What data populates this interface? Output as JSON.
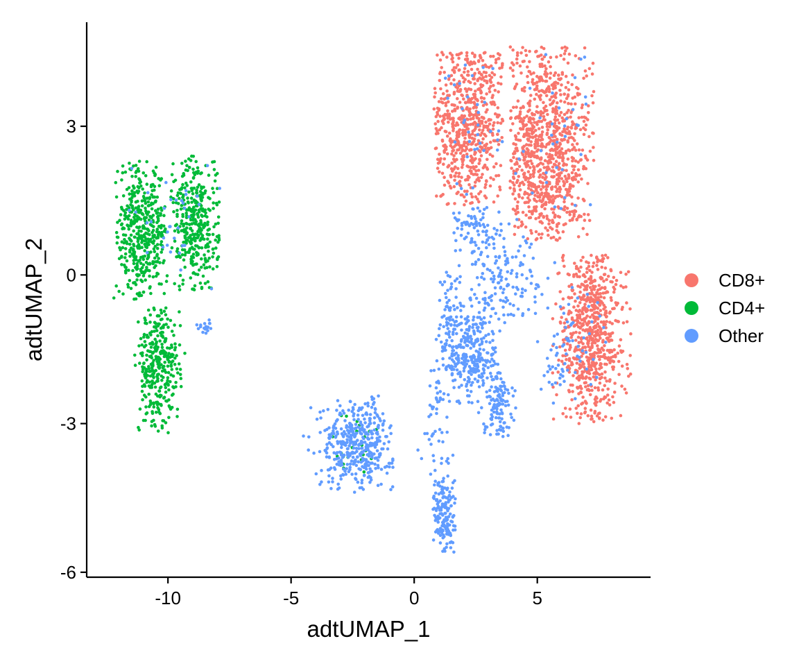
{
  "chart_data": {
    "type": "scatter",
    "xlabel": "adtUMAP_1",
    "ylabel": "adtUMAP_2",
    "xlim": [
      -13.3,
      9.6
    ],
    "ylim": [
      -6.1,
      5.1
    ],
    "xticks": [
      -10,
      -5,
      0,
      5
    ],
    "xtick_labels": [
      "-10",
      "-5",
      "0",
      "5"
    ],
    "yticks": [
      3,
      0,
      -3,
      -6
    ],
    "ytick_labels": [
      "3",
      "0",
      "-3",
      "-6"
    ],
    "grid": false,
    "legend_position": "right",
    "series": [
      {
        "name": "CD8+",
        "color": "#F8766D",
        "clusters": [
          {
            "cx": 2.2,
            "cy": 3.0,
            "sx": 0.85,
            "sy": 1.0,
            "n": 650,
            "xr": [
              0.8,
              3.6
            ],
            "yr": [
              1.4,
              4.5
            ]
          },
          {
            "cx": 5.2,
            "cy": 2.5,
            "sx": 1.05,
            "sy": 1.15,
            "n": 950,
            "xr": [
              3.9,
              7.3
            ],
            "yr": [
              0.7,
              4.6
            ]
          },
          {
            "cx": 7.2,
            "cy": -1.2,
            "sx": 0.75,
            "sy": 1.05,
            "n": 700,
            "xr": [
              5.6,
              8.8
            ],
            "yr": [
              -3.0,
              0.4
            ]
          }
        ]
      },
      {
        "name": "CD4+",
        "color": "#00BA38",
        "clusters": [
          {
            "cx": -11.1,
            "cy": 0.8,
            "sx": 0.55,
            "sy": 0.7,
            "n": 450,
            "xr": [
              -12.2,
              -9.9
            ],
            "yr": [
              -0.5,
              2.3
            ]
          },
          {
            "cx": -8.9,
            "cy": 1.0,
            "sx": 0.5,
            "sy": 0.75,
            "n": 380,
            "xr": [
              -9.9,
              -7.9
            ],
            "yr": [
              -0.3,
              2.4
            ]
          },
          {
            "cx": -10.4,
            "cy": -1.9,
            "sx": 0.45,
            "sy": 0.65,
            "n": 330,
            "xr": [
              -11.4,
              -9.3
            ],
            "yr": [
              -3.2,
              -0.6
            ]
          },
          {
            "cx": -2.4,
            "cy": -3.4,
            "sx": 0.6,
            "sy": 0.4,
            "n": 22,
            "xr": [
              -3.4,
              -1.4
            ],
            "yr": [
              -4.3,
              -2.5
            ]
          }
        ]
      },
      {
        "name": "Other",
        "color": "#619CFF",
        "clusters": [
          {
            "cx": -2.3,
            "cy": -3.4,
            "sx": 0.75,
            "sy": 0.45,
            "n": 420,
            "xr": [
              -4.5,
              -0.8
            ],
            "yr": [
              -4.4,
              -2.4
            ]
          },
          {
            "cx": 1.2,
            "cy": -4.8,
            "sx": 0.22,
            "sy": 0.45,
            "n": 170,
            "xr": [
              0.7,
              1.7
            ],
            "yr": [
              -5.7,
              -3.6
            ]
          },
          {
            "cx": 2.3,
            "cy": -1.6,
            "sx": 0.6,
            "sy": 0.5,
            "n": 320,
            "xr": [
              1.0,
              3.6
            ],
            "yr": [
              -2.8,
              -0.4
            ]
          },
          {
            "cx": 3.4,
            "cy": -2.6,
            "sx": 0.3,
            "sy": 0.35,
            "n": 110,
            "xr": [
              2.7,
              4.2
            ],
            "yr": [
              -3.3,
              -1.8
            ]
          },
          {
            "cx": 3.5,
            "cy": 0.0,
            "sx": 0.9,
            "sy": 0.5,
            "n": 150,
            "xr": [
              1.8,
              5.5
            ],
            "yr": [
              -1.0,
              1.2
            ]
          },
          {
            "cx": 2.4,
            "cy": 0.9,
            "sx": 0.6,
            "sy": 0.3,
            "n": 80,
            "xr": [
              1.6,
              4.2
            ],
            "yr": [
              0.3,
              1.4
            ]
          },
          {
            "cx": 1.4,
            "cy": -0.8,
            "sx": 0.25,
            "sy": 0.5,
            "n": 60,
            "xr": [
              0.8,
              2.0
            ],
            "yr": [
              -1.6,
              0.2
            ]
          },
          {
            "cx": 1.0,
            "cy": -2.5,
            "sx": 0.3,
            "sy": 0.4,
            "n": 30,
            "xr": [
              0.3,
              1.6
            ],
            "yr": [
              -3.4,
              -1.6
            ]
          },
          {
            "cx": 5.8,
            "cy": -1.8,
            "sx": 0.5,
            "sy": 0.4,
            "n": 40,
            "xr": [
              5.0,
              6.8
            ],
            "yr": [
              -2.6,
              -1.0
            ]
          },
          {
            "cx": -8.5,
            "cy": -1.05,
            "sx": 0.2,
            "sy": 0.07,
            "n": 18,
            "xr": [
              -8.9,
              -8.0
            ],
            "yr": [
              -1.2,
              -0.9
            ]
          },
          {
            "cx": -9.5,
            "cy": 1.2,
            "sx": 1.1,
            "sy": 0.8,
            "n": 35,
            "xr": [
              -12.2,
              -7.9
            ],
            "yr": [
              -0.3,
              2.4
            ]
          },
          {
            "cx": 2.3,
            "cy": 3.0,
            "sx": 0.8,
            "sy": 0.9,
            "n": 35,
            "xr": [
              0.8,
              3.6
            ],
            "yr": [
              1.5,
              4.3
            ]
          },
          {
            "cx": 5.6,
            "cy": 2.6,
            "sx": 1.0,
            "sy": 1.0,
            "n": 35,
            "xr": [
              4.0,
              7.3
            ],
            "yr": [
              0.8,
              4.5
            ]
          },
          {
            "cx": 6.5,
            "cy": -1.2,
            "sx": 0.7,
            "sy": 0.9,
            "n": 30,
            "xr": [
              5.6,
              8.5
            ],
            "yr": [
              -2.7,
              0.3
            ]
          },
          {
            "cx": 0.8,
            "cy": -3.5,
            "sx": 0.4,
            "sy": 0.3,
            "n": 18,
            "xr": [
              0.0,
              1.4
            ],
            "yr": [
              -4.1,
              -3.0
            ]
          }
        ]
      }
    ]
  }
}
